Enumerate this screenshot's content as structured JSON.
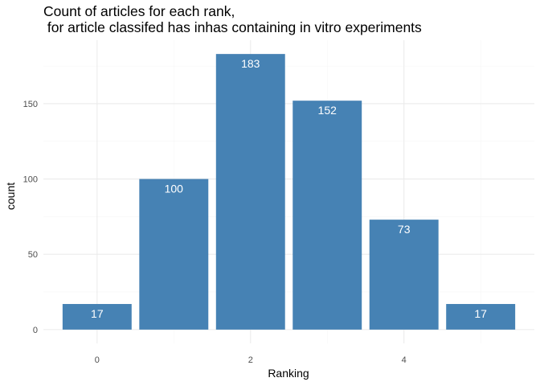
{
  "chart_data": {
    "type": "bar",
    "title_lines": [
      "Count of articles for each rank,",
      " for article classifed has inhas containing in vitro experiments"
    ],
    "xlabel": "Ranking",
    "ylabel": "count",
    "x": [
      0,
      1,
      2,
      3,
      4,
      5
    ],
    "values": [
      17,
      100,
      183,
      152,
      73,
      17
    ],
    "data_labels": [
      "17",
      "100",
      "183",
      "152",
      "73",
      "17"
    ],
    "x_ticks": [
      0,
      2,
      4
    ],
    "x_tick_labels": [
      "0",
      "2",
      "4"
    ],
    "y_ticks": [
      0,
      50,
      100,
      150
    ],
    "y_tick_labels": [
      "0",
      "50",
      "100",
      "150"
    ],
    "xlim": [
      -0.7,
      5.7
    ],
    "ylim": [
      -9.15,
      192.15
    ],
    "grid": true,
    "legend": "none",
    "bar_color": "#4682B4"
  }
}
